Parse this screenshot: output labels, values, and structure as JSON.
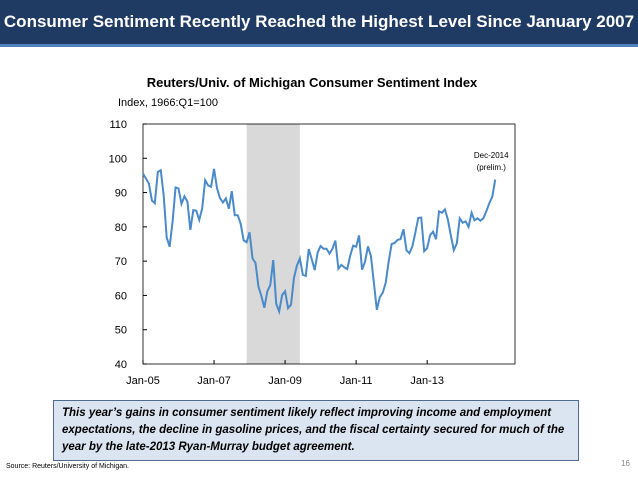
{
  "header": {
    "title": "Consumer Sentiment Recently Reached the Highest Level Since January 2007"
  },
  "chart_data": {
    "type": "line",
    "title": "Reuters/Univ. of Michigan Consumer Sentiment Index",
    "y_label": "Index, 1966:Q1=100",
    "categories": [
      "Jan-05",
      null,
      null,
      null,
      null,
      null,
      null,
      null,
      null,
      null,
      null,
      null,
      null,
      null,
      null,
      null,
      null,
      null,
      null,
      null,
      null,
      null,
      null,
      null,
      "Jan-07",
      null,
      null,
      null,
      null,
      null,
      null,
      null,
      null,
      null,
      null,
      null,
      null,
      null,
      null,
      null,
      null,
      null,
      null,
      null,
      null,
      null,
      null,
      null,
      "Jan-09",
      null,
      null,
      null,
      null,
      null,
      null,
      null,
      null,
      null,
      null,
      null,
      null,
      null,
      null,
      null,
      null,
      null,
      null,
      null,
      null,
      null,
      null,
      null,
      "Jan-11",
      null,
      null,
      null,
      null,
      null,
      null,
      null,
      null,
      null,
      null,
      null,
      null,
      null,
      null,
      null,
      null,
      null,
      null,
      null,
      null,
      null,
      null,
      null,
      "Jan-13",
      null,
      null,
      null,
      null,
      null,
      null,
      null,
      null,
      null,
      null,
      null,
      null,
      null,
      null,
      null,
      null,
      null,
      null,
      null,
      null,
      null,
      null,
      null
    ],
    "values": [
      95.5,
      94.1,
      92.6,
      87.7,
      86.9,
      96.0,
      96.5,
      89.1,
      76.9,
      74.2,
      81.6,
      91.5,
      91.2,
      86.7,
      88.9,
      87.4,
      79.1,
      84.9,
      84.7,
      82.0,
      85.4,
      93.6,
      92.1,
      91.7,
      96.9,
      91.3,
      88.4,
      87.1,
      88.3,
      85.3,
      90.4,
      83.4,
      83.4,
      80.9,
      76.1,
      75.5,
      78.4,
      70.8,
      69.5,
      62.6,
      59.8,
      56.4,
      61.2,
      63.0,
      70.3,
      57.6,
      55.3,
      60.1,
      61.2,
      56.3,
      57.3,
      65.1,
      68.7,
      70.8,
      66.0,
      65.7,
      73.5,
      70.6,
      67.4,
      72.5,
      74.4,
      73.6,
      73.6,
      72.2,
      73.6,
      76.0,
      67.8,
      68.9,
      68.2,
      67.7,
      71.6,
      74.5,
      74.2,
      77.5,
      67.5,
      69.8,
      74.3,
      71.5,
      63.7,
      55.8,
      59.5,
      60.8,
      63.7,
      69.9,
      75.0,
      75.3,
      76.2,
      76.4,
      79.3,
      73.2,
      72.3,
      74.3,
      78.3,
      82.6,
      82.7,
      72.9,
      73.8,
      77.6,
      78.6,
      76.4,
      84.5,
      84.1,
      85.1,
      82.1,
      77.5,
      73.2,
      75.1,
      82.5,
      81.2,
      81.6,
      80.0,
      84.1,
      81.9,
      82.5,
      81.8,
      82.5,
      84.6,
      86.9,
      88.8,
      93.8
    ],
    "color": "#4a8ac9",
    "shaded": {
      "start": 35,
      "end": 53,
      "color": "#d9d9d9"
    },
    "ylim": [
      40,
      110
    ],
    "yticks": [
      40,
      50,
      60,
      70,
      80,
      90,
      100,
      110
    ],
    "annotation": [
      "Dec-2014",
      "(prelim.)"
    ]
  },
  "note": "This year’s gains in consumer sentiment likely reflect improving income and employment expectations, the decline in gasoline prices, and the fiscal certainty secured for much of the year by the late-2013 Ryan-Murray budget agreement.",
  "source": "Source: Reuters/University of Michigan.",
  "page_number": "16"
}
